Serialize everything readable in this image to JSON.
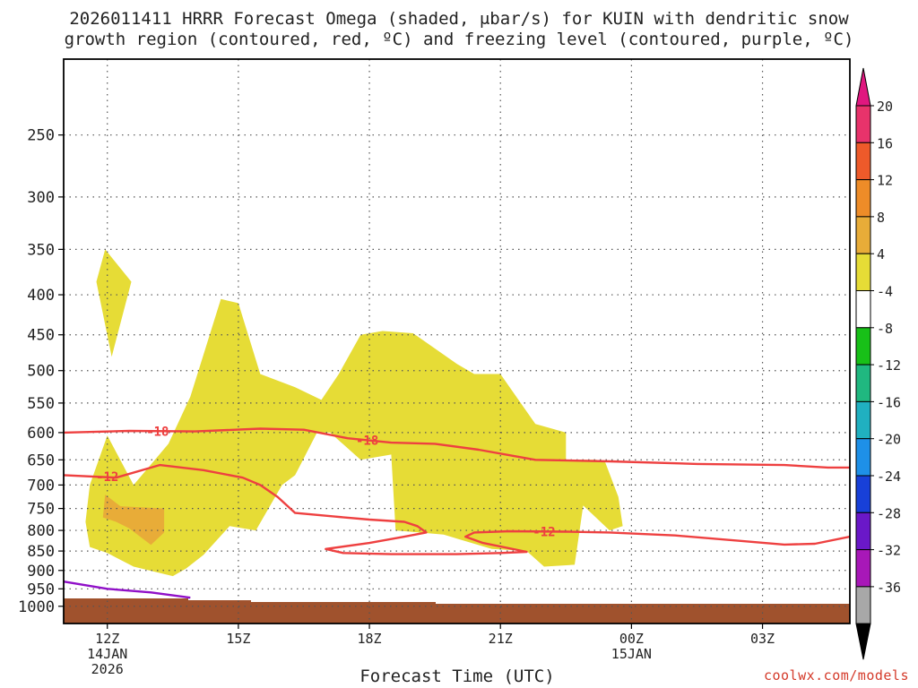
{
  "title": {
    "line1": "2026011411 HRRR Forecast Omega (shaded, μbar/s) for KUIN with dendritic snow",
    "line2": "growth region (contoured, red, ºC) and freezing level (contoured, purple, ºC)"
  },
  "credit": "coolwx.com/models",
  "chart_data": {
    "type": "contour",
    "title": "2026011411 HRRR Forecast Omega (shaded, μbar/s) for KUIN with dendritic snow growth region (contoured, red, ºC) and freezing level (contoured, purple, ºC)",
    "xlabel": "Forecast Time (UTC)",
    "ylabel": "",
    "x_range": [
      "2026-01-14 11Z",
      "2026-01-15 05Z"
    ],
    "x_ticks": [
      {
        "label": "12Z",
        "sub1": "14JAN",
        "sub2": "2026",
        "hours": 1
      },
      {
        "label": "15Z",
        "sub1": "",
        "sub2": "",
        "hours": 4
      },
      {
        "label": "18Z",
        "sub1": "",
        "sub2": "",
        "hours": 7
      },
      {
        "label": "21Z",
        "sub1": "",
        "sub2": "",
        "hours": 10
      },
      {
        "label": "00Z",
        "sub1": "15JAN",
        "sub2": "",
        "hours": 13
      },
      {
        "label": "03Z",
        "sub1": "",
        "sub2": "",
        "hours": 16
      }
    ],
    "y_scale": "log-pressure",
    "y_range": [
      1000,
      200
    ],
    "y_ticks": [
      "250",
      "300",
      "350",
      "400",
      "450",
      "500",
      "550",
      "600",
      "650",
      "700",
      "750",
      "800",
      "850",
      "900",
      "950",
      "1000"
    ],
    "grid": true,
    "colorbar": {
      "labels": [
        "20",
        "16",
        "12",
        "8",
        "4",
        "-4",
        "-8",
        "-12",
        "-16",
        "-20",
        "-24",
        "-28",
        "-32",
        "-36"
      ],
      "colors": [
        "#e8336b",
        "#ee5a2a",
        "#ee8c28",
        "#e8ac38",
        "#e6dc36",
        "#ffffff",
        "#18c018",
        "#20b880",
        "#20b0c0",
        "#1e90e8",
        "#1840d8",
        "#6a18c8",
        "#a818b8",
        "#a8a8a8"
      ],
      "top_color": "#e0177f",
      "bottom_color": "#000000"
    },
    "omega_regions": [
      {
        "level": "4 to 8",
        "color": "#e6dc36",
        "points": [
          [
            0.95,
            350
          ],
          [
            1.55,
            385
          ],
          [
            1.1,
            480
          ],
          [
            0.75,
            385
          ]
        ]
      },
      {
        "level": "4 to 8",
        "color": "#e6dc36",
        "points": [
          [
            0.6,
            700
          ],
          [
            1.0,
            605
          ],
          [
            1.6,
            700
          ],
          [
            2.4,
            620
          ],
          [
            2.9,
            540
          ],
          [
            3.6,
            405
          ],
          [
            4.0,
            410
          ],
          [
            4.5,
            505
          ],
          [
            5.3,
            525
          ],
          [
            5.9,
            545
          ],
          [
            6.3,
            505
          ],
          [
            6.8,
            450
          ],
          [
            7.3,
            445
          ],
          [
            8.0,
            448
          ],
          [
            9.0,
            490
          ],
          [
            9.4,
            505
          ],
          [
            10.0,
            505
          ],
          [
            10.8,
            585
          ],
          [
            11.5,
            600
          ],
          [
            11.5,
            650
          ],
          [
            12.2,
            650
          ],
          [
            12.4,
            655
          ],
          [
            12.7,
            725
          ],
          [
            12.8,
            790
          ],
          [
            12.5,
            800
          ],
          [
            11.8,
            735
          ],
          [
            11.9,
            740
          ],
          [
            11.7,
            885
          ],
          [
            11.0,
            890
          ],
          [
            10.6,
            850
          ],
          [
            9.8,
            845
          ],
          [
            8.7,
            810
          ],
          [
            7.6,
            800
          ],
          [
            7.5,
            640
          ],
          [
            6.8,
            650
          ],
          [
            6.1,
            600
          ],
          [
            5.8,
            600
          ],
          [
            5.3,
            680
          ],
          [
            5.0,
            700
          ],
          [
            4.4,
            800
          ],
          [
            3.8,
            790
          ],
          [
            3.2,
            860
          ],
          [
            2.8,
            895
          ],
          [
            2.5,
            915
          ],
          [
            1.6,
            890
          ],
          [
            1.0,
            855
          ],
          [
            0.6,
            840
          ],
          [
            0.5,
            780
          ]
        ]
      },
      {
        "level": "8 to 12",
        "color": "#e8ac38",
        "points": [
          [
            0.95,
            720
          ],
          [
            1.3,
            745
          ],
          [
            2.3,
            750
          ],
          [
            2.3,
            805
          ],
          [
            2.0,
            835
          ],
          [
            1.5,
            795
          ],
          [
            1.2,
            780
          ],
          [
            0.9,
            770
          ]
        ]
      }
    ],
    "isotherms": [
      {
        "name": "-18",
        "color": "#ee4040",
        "points": [
          [
            0,
            600
          ],
          [
            1.5,
            597
          ],
          [
            3.0,
            598
          ],
          [
            4.5,
            593
          ],
          [
            5.5,
            595
          ],
          [
            6.5,
            610
          ],
          [
            7.5,
            618
          ],
          [
            8.5,
            620
          ],
          [
            9.5,
            631
          ],
          [
            10.8,
            650
          ],
          [
            12.5,
            653
          ],
          [
            14.5,
            658
          ],
          [
            16.5,
            660
          ],
          [
            17.5,
            665
          ],
          [
            18,
            665
          ]
        ],
        "label_at": [
          [
            2.15,
            598
          ],
          [
            6.95,
            614
          ]
        ]
      },
      {
        "name": "-12",
        "color": "#ee4040",
        "points": [
          [
            0,
            680
          ],
          [
            1.2,
            685
          ],
          [
            2.2,
            660
          ],
          [
            3.2,
            670
          ],
          [
            4.1,
            685
          ],
          [
            4.5,
            700
          ],
          [
            4.9,
            725
          ],
          [
            5.3,
            760
          ],
          [
            6.2,
            768
          ],
          [
            7.0,
            775
          ],
          [
            7.8,
            780
          ],
          [
            8.1,
            790
          ],
          [
            8.3,
            805
          ],
          [
            7.8,
            815
          ],
          [
            7.0,
            830
          ],
          [
            6.0,
            845
          ],
          [
            6.4,
            855
          ],
          [
            7.5,
            858
          ],
          [
            9.0,
            858
          ],
          [
            10.0,
            855
          ],
          [
            10.6,
            852
          ],
          [
            9.6,
            830
          ],
          [
            9.2,
            815
          ],
          [
            9.4,
            805
          ],
          [
            10.2,
            802
          ],
          [
            11.5,
            803
          ],
          [
            12.5,
            805
          ],
          [
            14.0,
            812
          ],
          [
            15.5,
            825
          ],
          [
            16.5,
            834
          ],
          [
            17.2,
            832
          ],
          [
            18,
            815
          ]
        ],
        "label_at": [
          [
            1.0,
            683
          ],
          [
            11.0,
            803
          ]
        ]
      },
      {
        "name": "0",
        "color": "#9010c8",
        "points": [
          [
            0,
            930
          ],
          [
            1.0,
            950
          ],
          [
            2.0,
            960
          ],
          [
            2.9,
            975
          ]
        ],
        "label_at": []
      }
    ],
    "terrain_color": "#a0522d"
  }
}
